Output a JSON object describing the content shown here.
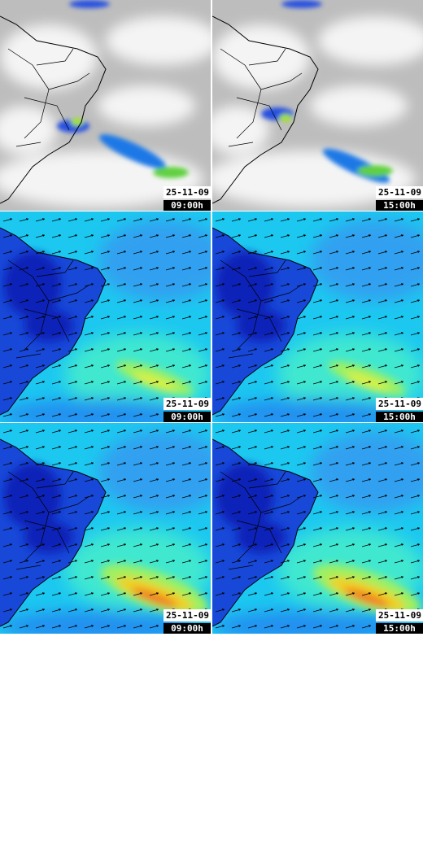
{
  "panels": [
    {
      "date": "25-11-09",
      "time": "09:00h"
    },
    {
      "date": "25-11-09",
      "time": "15:00h"
    },
    {
      "date": "25-11-09",
      "time": "09:00h"
    },
    {
      "date": "25-11-09",
      "time": "15:00h"
    },
    {
      "date": "25-11-09",
      "time": "09:00h"
    },
    {
      "date": "25-11-09",
      "time": "15:00h"
    }
  ]
}
